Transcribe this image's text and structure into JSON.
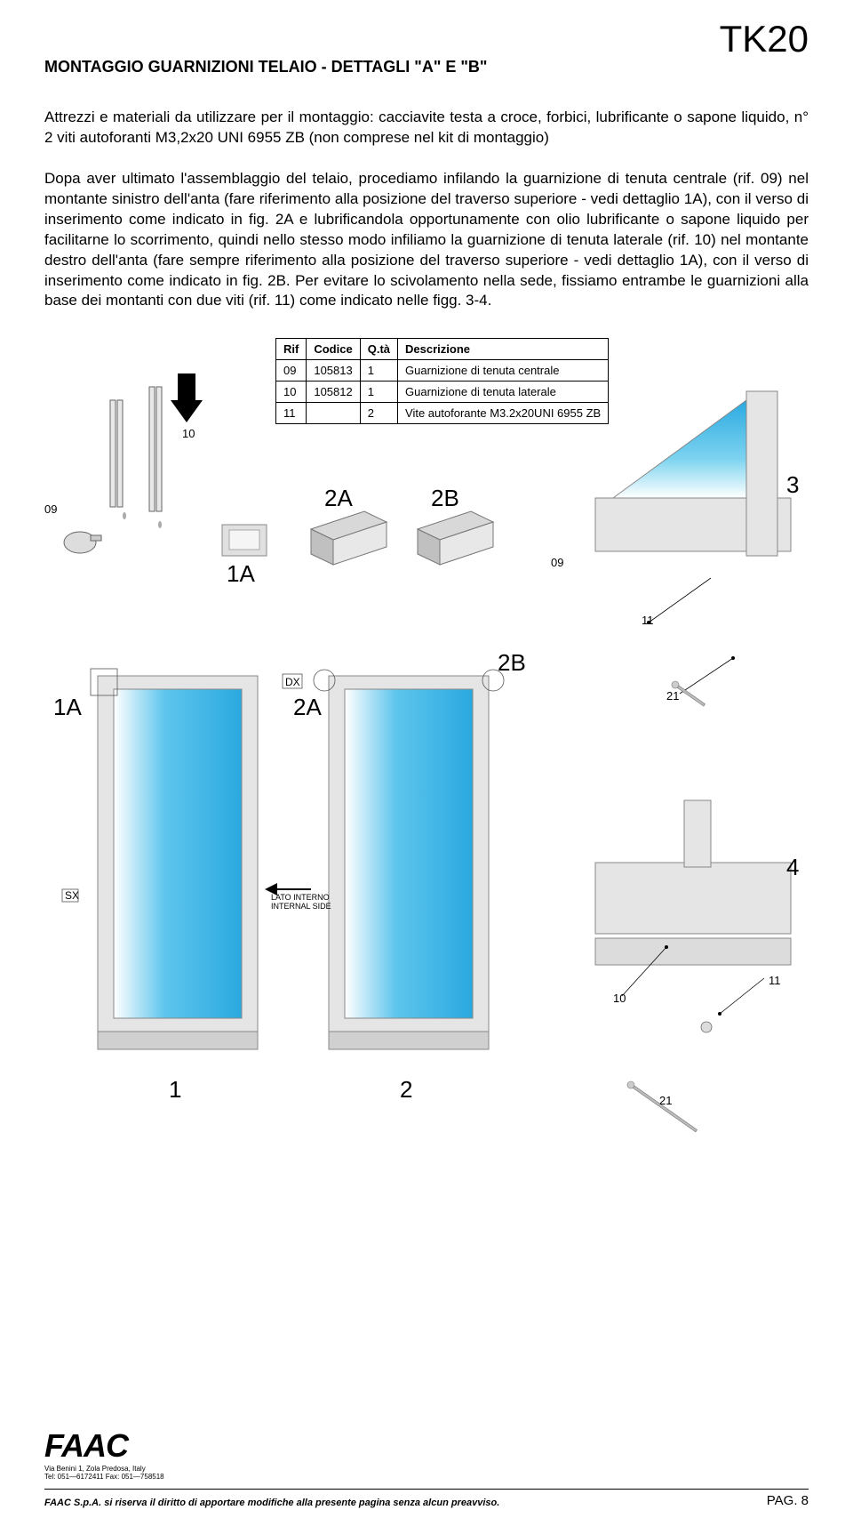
{
  "doc_code": "TK20",
  "title": "MONTAGGIO GUARNIZIONI TELAIO - DETTAGLI \"A\" E \"B\"",
  "body": "Attrezzi e materiali da utilizzare per il montaggio: cacciavite testa a croce, forbici, lubrificante o sapone liquido, n° 2 viti autoforanti M3,2x20 UNI 6955 ZB (non comprese nel kit di montaggio)\n\nDopa aver ultimato l'assemblaggio del telaio, procediamo infilando la guarnizione di tenuta centrale (rif. 09) nel montante sinistro dell'anta (fare riferimento alla posizione del traverso superiore - vedi dettaglio 1A), con il verso di inserimento come indicato in fig. 2A e lubrificandola opportunamente con olio lubrificante o sapone liquido per facilitarne lo scorrimento, quindi nello stesso modo infiliamo la guarnizione di tenuta laterale (rif. 10) nel montante destro dell'anta (fare sempre riferimento alla posizione del traverso superiore - vedi dettaglio 1A), con il verso di inserimento come indicato in fig. 2B. Per evitare lo scivolamento nella sede, fissiamo entrambe le guarnizioni alla base dei montanti con due viti (rif. 11) come indicato nelle figg. 3-4.",
  "table": {
    "headers": [
      "Rif",
      "Codice",
      "Q.tà",
      "Descrizione"
    ],
    "rows": [
      [
        "09",
        "105813",
        "1",
        "Guarnizione di tenuta centrale"
      ],
      [
        "10",
        "105812",
        "1",
        "Guarnizione di tenuta laterale"
      ],
      [
        "11",
        "",
        "2",
        "Vite autoforante M3.2x20UNI 6955 ZB"
      ]
    ]
  },
  "figures": {
    "labels": {
      "l_09a": "09",
      "l_10": "10",
      "l_1A_top": "1A",
      "l_2A_top": "2A",
      "l_2B_top": "2B",
      "l_09b": "09",
      "l_11a": "11",
      "l_21a": "21",
      "l_3": "3",
      "l_1A_left": "1A",
      "l_DX": "DX",
      "l_2A_mid": "2A",
      "l_2B_mid": "2B",
      "l_SX": "SX",
      "l_1": "1",
      "l_lato": "LATO INTERNO\nINTERNAL SIDE",
      "l_2": "2",
      "l_4": "4",
      "l_10b": "10",
      "l_11b": "11",
      "l_21b": "21"
    }
  },
  "logo": {
    "brand": "FAAC",
    "addr1": "Via Benini 1, Zola Predosa, Italy",
    "addr2": "Tel: 051—6172411  Fax: 051—758518"
  },
  "footer": {
    "notice": "FAAC S.p.A. si riserva il diritto di apportare modifiche alla presente pagina senza alcun preavviso.",
    "page": "PAG. 8"
  },
  "colors": {
    "glass_light": "#a8dff5",
    "glass_dark": "#2aa9e0",
    "frame": "#d0d0d0",
    "frame_edge": "#888888",
    "line": "#000000"
  }
}
